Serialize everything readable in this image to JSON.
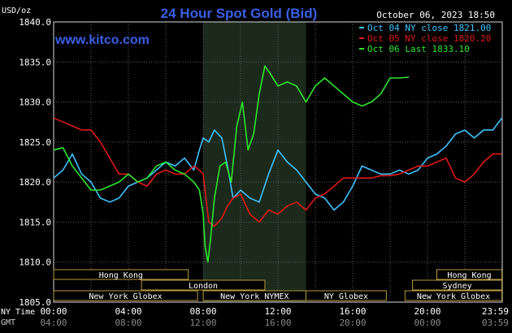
{
  "chart_data": {
    "type": "line",
    "title": "24 Hour Spot Gold (Bid)",
    "source": "www.kitco.com",
    "date_stamp": "October 06, 2023 18:50",
    "ylabel": "USD/oz",
    "ylim": [
      1805,
      1840
    ],
    "y_ticks": [
      "1840.0",
      "1835.0",
      "1830.0",
      "1825.0",
      "1820.0",
      "1815.0",
      "1810.0",
      "1805.0"
    ],
    "x_range_hours": [
      0,
      24
    ],
    "x_ticks": {
      "ny_label": "NY Time",
      "gmt_label": "GMT",
      "ny": [
        "00:00",
        "04:00",
        "08:00",
        "12:00",
        "16:00",
        "20:00",
        "23:59"
      ],
      "gmt": [
        "04:00",
        "08:00",
        "12:00",
        "16:00",
        "20:00",
        "00:00",
        "03:59"
      ]
    },
    "grid": true,
    "legend": "top-right",
    "series": [
      {
        "name": "Oct 04 NY close 1821.00",
        "color": "#3fc3ff",
        "x": [
          0,
          0.5,
          1,
          1.5,
          2,
          2.5,
          3,
          3.5,
          4,
          4.5,
          5,
          5.5,
          6,
          6.5,
          7,
          7.5,
          7.8,
          8,
          8.3,
          8.6,
          9,
          9.3,
          9.6,
          10,
          10.5,
          11,
          11.5,
          12,
          12.5,
          13,
          13.5,
          14,
          14.5,
          15,
          15.5,
          16,
          16.5,
          17,
          17.5,
          18,
          18.5,
          19,
          19.5,
          20,
          20.5,
          21,
          21.5,
          22,
          22.5,
          23,
          23.5,
          23.98
        ],
        "values": [
          1820.5,
          1821.5,
          1823.5,
          1821,
          1820,
          1818,
          1817.5,
          1818,
          1819.5,
          1820,
          1820.5,
          1821.5,
          1822.5,
          1822,
          1823,
          1821.5,
          1824,
          1825.5,
          1825,
          1826.5,
          1825.5,
          1822,
          1818,
          1819,
          1818,
          1817.5,
          1821,
          1824,
          1822.5,
          1821.5,
          1820,
          1818.5,
          1818,
          1816.5,
          1817.5,
          1819.5,
          1822,
          1821.5,
          1821,
          1821,
          1821.5,
          1821,
          1821.5,
          1823,
          1823.5,
          1824.5,
          1826,
          1826.5,
          1825.5,
          1826.5,
          1826.5,
          1828
        ]
      },
      {
        "name": "Oct 05 NY close 1820.20",
        "color": "#e01818",
        "x": [
          0,
          0.5,
          1,
          1.5,
          2,
          2.5,
          3,
          3.5,
          4,
          4.5,
          5,
          5.5,
          6,
          6.5,
          7,
          7.5,
          7.8,
          8,
          8.3,
          8.6,
          9,
          9.3,
          9.6,
          10,
          10.5,
          11,
          11.5,
          12,
          12.5,
          13,
          13.5,
          14,
          14.5,
          15,
          15.5,
          16,
          16.5,
          17,
          17.5,
          18,
          18.5,
          19,
          19.5,
          20,
          20.5,
          21,
          21.5,
          22,
          22.5,
          23,
          23.5,
          23.98
        ],
        "values": [
          1828,
          1827.5,
          1827,
          1826.5,
          1826.5,
          1825,
          1823,
          1821,
          1821,
          1820,
          1819.5,
          1821,
          1821.5,
          1821,
          1821,
          1822,
          1821.5,
          1821,
          1815,
          1814.5,
          1815.5,
          1817,
          1818,
          1818.5,
          1816,
          1815,
          1816.5,
          1816,
          1817,
          1817.5,
          1816.5,
          1818,
          1818.5,
          1819.5,
          1820.5,
          1820.5,
          1820.5,
          1820.5,
          1820.8,
          1820.8,
          1821,
          1821.5,
          1822,
          1822,
          1822.5,
          1823,
          1820.5,
          1820,
          1821,
          1822.5,
          1823.5,
          1823.5
        ]
      },
      {
        "name": "Oct 06 Last 1833.10",
        "color": "#2ee62e",
        "x": [
          0,
          0.5,
          1,
          1.5,
          2,
          2.5,
          3,
          3.5,
          4,
          4.5,
          5,
          5.5,
          6,
          6.5,
          7,
          7.5,
          7.8,
          8,
          8.1,
          8.25,
          8.4,
          8.6,
          8.9,
          9.2,
          9.5,
          9.8,
          10.1,
          10.4,
          10.7,
          11,
          11.3,
          11.6,
          12,
          12.5,
          13,
          13.5,
          14,
          14.5,
          15,
          15.5,
          16,
          16.5,
          17,
          17.5,
          18,
          18.5,
          19,
          19.5,
          20
        ],
        "values": [
          1824,
          1824.3,
          1822,
          1820.5,
          1819,
          1819,
          1819.5,
          1820,
          1821,
          1820,
          1820.5,
          1822,
          1822.5,
          1821.5,
          1821,
          1820,
          1819,
          1816,
          1812,
          1810,
          1813,
          1818,
          1822,
          1822.5,
          1820,
          1827,
          1830,
          1824,
          1826,
          1831,
          1834.5,
          1833.5,
          1832,
          1832.5,
          1832,
          1830,
          1832,
          1833,
          1832,
          1831,
          1830,
          1829.5,
          1830,
          1831,
          1833,
          1833,
          1833.1,
          null,
          null
        ]
      }
    ],
    "sessions": [
      {
        "label": "Hong Kong",
        "row": 0,
        "start": 0,
        "end": 7.2
      },
      {
        "label": "London",
        "row": 1,
        "start": 4.7,
        "end": 11.3
      },
      {
        "label": "New York Globex",
        "row": 2,
        "start": 0,
        "end": 7.7
      },
      {
        "label": "New York NYMEX",
        "row": 2,
        "start": 8,
        "end": 13.5
      },
      {
        "label": "NY Globex",
        "row": 2,
        "start": 13.5,
        "end": 17.8
      },
      {
        "label": "Hong Kong",
        "row": 0,
        "start": 20.5,
        "end": 23.98
      },
      {
        "label": "Sydney",
        "row": 1,
        "start": 19.2,
        "end": 23.98
      },
      {
        "label": "New York Globex",
        "row": 2,
        "start": 18.8,
        "end": 23.98
      }
    ],
    "highlight_band": {
      "start": 8,
      "end": 13.5
    }
  }
}
